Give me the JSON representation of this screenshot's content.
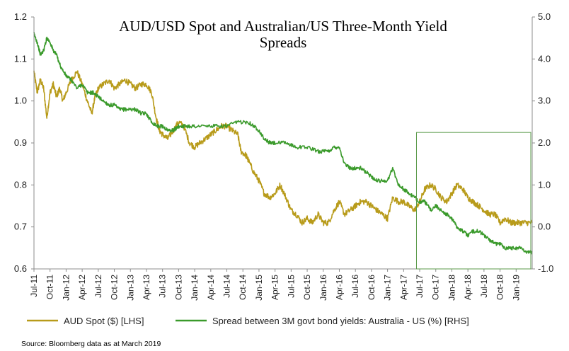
{
  "chart_data": {
    "type": "line",
    "title_lines": [
      "AUD/USD Spot and Australian/US Three-Month Yield",
      "Spreads"
    ],
    "x_tick_labels": [
      "Jul-11",
      "Oct-11",
      "Jan-12",
      "Apr-12",
      "Jul-12",
      "Oct-12",
      "Jan-13",
      "Apr-13",
      "Jul-13",
      "Oct-13",
      "Jan-14",
      "Apr-14",
      "Jul-14",
      "Oct-14",
      "Jan-15",
      "Apr-15",
      "Jul-15",
      "Oct-15",
      "Jan-16",
      "Apr-16",
      "Jul-16",
      "Oct-16",
      "Jan-17",
      "Apr-17",
      "Jul-17",
      "Oct-17",
      "Jan-18",
      "Apr-18",
      "Jul-18",
      "Oct-18",
      "Jan-19"
    ],
    "x_range": [
      2011.5,
      2019.25
    ],
    "y_left": {
      "min": 0.6,
      "max": 1.2,
      "step": 0.1,
      "tick_labels": [
        "0.6",
        "0.7",
        "0.8",
        "0.9",
        "1.0",
        "1.1",
        "1.2"
      ]
    },
    "y_right": {
      "min": -1.0,
      "max": 5.0,
      "step": 1.0,
      "tick_labels": [
        "-1.0",
        "0.0",
        "1.0",
        "2.0",
        "3.0",
        "4.0",
        "5.0"
      ]
    },
    "series": [
      {
        "name": "AUD Spot ($) [LHS]",
        "axis": "left",
        "color": "#b89b1a",
        "points": [
          [
            2011.5,
            1.07
          ],
          [
            2011.55,
            1.02
          ],
          [
            2011.6,
            1.05
          ],
          [
            2011.65,
            1.03
          ],
          [
            2011.7,
            0.96
          ],
          [
            2011.75,
            1.02
          ],
          [
            2011.8,
            1.04
          ],
          [
            2011.85,
            1.01
          ],
          [
            2011.9,
            1.03
          ],
          [
            2011.95,
            1.0
          ],
          [
            2012.0,
            1.02
          ],
          [
            2012.08,
            1.05
          ],
          [
            2012.17,
            1.07
          ],
          [
            2012.25,
            1.04
          ],
          [
            2012.33,
            1.0
          ],
          [
            2012.4,
            0.97
          ],
          [
            2012.45,
            1.01
          ],
          [
            2012.5,
            1.03
          ],
          [
            2012.58,
            1.04
          ],
          [
            2012.67,
            1.05
          ],
          [
            2012.75,
            1.03
          ],
          [
            2012.83,
            1.04
          ],
          [
            2012.92,
            1.05
          ],
          [
            2013.0,
            1.04
          ],
          [
            2013.08,
            1.03
          ],
          [
            2013.17,
            1.04
          ],
          [
            2013.25,
            1.04
          ],
          [
            2013.33,
            1.02
          ],
          [
            2013.4,
            0.96
          ],
          [
            2013.45,
            0.93
          ],
          [
            2013.5,
            0.92
          ],
          [
            2013.58,
            0.91
          ],
          [
            2013.67,
            0.93
          ],
          [
            2013.75,
            0.95
          ],
          [
            2013.83,
            0.94
          ],
          [
            2013.92,
            0.9
          ],
          [
            2014.0,
            0.89
          ],
          [
            2014.08,
            0.9
          ],
          [
            2014.17,
            0.91
          ],
          [
            2014.25,
            0.92
          ],
          [
            2014.33,
            0.93
          ],
          [
            2014.42,
            0.94
          ],
          [
            2014.5,
            0.94
          ],
          [
            2014.58,
            0.93
          ],
          [
            2014.67,
            0.92
          ],
          [
            2014.72,
            0.88
          ],
          [
            2014.8,
            0.87
          ],
          [
            2014.83,
            0.86
          ],
          [
            2014.92,
            0.83
          ],
          [
            2015.0,
            0.81
          ],
          [
            2015.08,
            0.78
          ],
          [
            2015.17,
            0.77
          ],
          [
            2015.25,
            0.78
          ],
          [
            2015.33,
            0.8
          ],
          [
            2015.42,
            0.77
          ],
          [
            2015.5,
            0.74
          ],
          [
            2015.58,
            0.73
          ],
          [
            2015.67,
            0.71
          ],
          [
            2015.75,
            0.72
          ],
          [
            2015.83,
            0.71
          ],
          [
            2015.92,
            0.73
          ],
          [
            2016.0,
            0.71
          ],
          [
            2016.08,
            0.71
          ],
          [
            2016.17,
            0.74
          ],
          [
            2016.25,
            0.76
          ],
          [
            2016.33,
            0.73
          ],
          [
            2016.42,
            0.74
          ],
          [
            2016.5,
            0.75
          ],
          [
            2016.58,
            0.76
          ],
          [
            2016.67,
            0.76
          ],
          [
            2016.75,
            0.75
          ],
          [
            2016.83,
            0.74
          ],
          [
            2016.92,
            0.73
          ],
          [
            2017.0,
            0.72
          ],
          [
            2017.08,
            0.77
          ],
          [
            2017.17,
            0.76
          ],
          [
            2017.25,
            0.76
          ],
          [
            2017.33,
            0.75
          ],
          [
            2017.42,
            0.74
          ],
          [
            2017.5,
            0.76
          ],
          [
            2017.58,
            0.79
          ],
          [
            2017.67,
            0.8
          ],
          [
            2017.75,
            0.79
          ],
          [
            2017.83,
            0.77
          ],
          [
            2017.92,
            0.76
          ],
          [
            2018.0,
            0.78
          ],
          [
            2018.08,
            0.8
          ],
          [
            2018.17,
            0.79
          ],
          [
            2018.25,
            0.77
          ],
          [
            2018.33,
            0.76
          ],
          [
            2018.42,
            0.75
          ],
          [
            2018.5,
            0.74
          ],
          [
            2018.58,
            0.73
          ],
          [
            2018.67,
            0.73
          ],
          [
            2018.75,
            0.71
          ],
          [
            2018.83,
            0.72
          ],
          [
            2018.92,
            0.71
          ],
          [
            2019.0,
            0.71
          ],
          [
            2019.08,
            0.71
          ],
          [
            2019.17,
            0.71
          ],
          [
            2019.25,
            0.71
          ]
        ]
      },
      {
        "name": "Spread between 3M govt bond yields: Australia - US (%) [RHS]",
        "axis": "right",
        "color": "#3a9a2b",
        "points": [
          [
            2011.5,
            4.6
          ],
          [
            2011.55,
            4.4
          ],
          [
            2011.6,
            4.1
          ],
          [
            2011.65,
            4.2
          ],
          [
            2011.7,
            4.5
          ],
          [
            2011.75,
            4.4
          ],
          [
            2011.8,
            4.2
          ],
          [
            2011.85,
            4.1
          ],
          [
            2011.92,
            3.8
          ],
          [
            2012.0,
            3.6
          ],
          [
            2012.08,
            3.5
          ],
          [
            2012.17,
            3.3
          ],
          [
            2012.25,
            3.4
          ],
          [
            2012.33,
            3.2
          ],
          [
            2012.42,
            3.2
          ],
          [
            2012.5,
            3.1
          ],
          [
            2012.58,
            3.0
          ],
          [
            2012.67,
            2.9
          ],
          [
            2012.75,
            2.9
          ],
          [
            2012.83,
            2.8
          ],
          [
            2012.92,
            2.8
          ],
          [
            2013.0,
            2.8
          ],
          [
            2013.08,
            2.8
          ],
          [
            2013.17,
            2.7
          ],
          [
            2013.25,
            2.7
          ],
          [
            2013.33,
            2.5
          ],
          [
            2013.42,
            2.4
          ],
          [
            2013.5,
            2.4
          ],
          [
            2013.58,
            2.3
          ],
          [
            2013.67,
            2.3
          ],
          [
            2013.75,
            2.4
          ],
          [
            2013.83,
            2.4
          ],
          [
            2013.92,
            2.4
          ],
          [
            2014.0,
            2.4
          ],
          [
            2014.17,
            2.4
          ],
          [
            2014.33,
            2.4
          ],
          [
            2014.5,
            2.4
          ],
          [
            2014.67,
            2.5
          ],
          [
            2014.83,
            2.5
          ],
          [
            2014.92,
            2.4
          ],
          [
            2015.0,
            2.3
          ],
          [
            2015.08,
            2.1
          ],
          [
            2015.17,
            2.0
          ],
          [
            2015.25,
            2.0
          ],
          [
            2015.42,
            2.0
          ],
          [
            2015.58,
            1.9
          ],
          [
            2015.75,
            1.9
          ],
          [
            2015.92,
            1.8
          ],
          [
            2016.0,
            1.8
          ],
          [
            2016.08,
            1.8
          ],
          [
            2016.17,
            1.9
          ],
          [
            2016.25,
            1.9
          ],
          [
            2016.33,
            1.5
          ],
          [
            2016.42,
            1.4
          ],
          [
            2016.5,
            1.4
          ],
          [
            2016.58,
            1.4
          ],
          [
            2016.67,
            1.3
          ],
          [
            2016.75,
            1.2
          ],
          [
            2016.83,
            1.1
          ],
          [
            2016.92,
            1.1
          ],
          [
            2017.0,
            1.1
          ],
          [
            2017.08,
            1.4
          ],
          [
            2017.17,
            1.0
          ],
          [
            2017.25,
            0.9
          ],
          [
            2017.33,
            0.8
          ],
          [
            2017.42,
            0.7
          ],
          [
            2017.5,
            0.6
          ],
          [
            2017.58,
            0.6
          ],
          [
            2017.67,
            0.4
          ],
          [
            2017.75,
            0.5
          ],
          [
            2017.83,
            0.4
          ],
          [
            2017.92,
            0.3
          ],
          [
            2018.0,
            0.2
          ],
          [
            2018.08,
            0.0
          ],
          [
            2018.17,
            -0.1
          ],
          [
            2018.25,
            -0.2
          ],
          [
            2018.33,
            -0.1
          ],
          [
            2018.42,
            -0.1
          ],
          [
            2018.5,
            -0.2
          ],
          [
            2018.58,
            -0.3
          ],
          [
            2018.67,
            -0.4
          ],
          [
            2018.75,
            -0.4
          ],
          [
            2018.83,
            -0.5
          ],
          [
            2018.92,
            -0.5
          ],
          [
            2019.0,
            -0.5
          ],
          [
            2019.08,
            -0.5
          ],
          [
            2019.17,
            -0.6
          ],
          [
            2019.25,
            -0.6
          ]
        ]
      }
    ],
    "highlight_box_x_range": [
      2017.45,
      2019.42
    ],
    "source": "Source: Bloomberg data as at March 2019"
  }
}
